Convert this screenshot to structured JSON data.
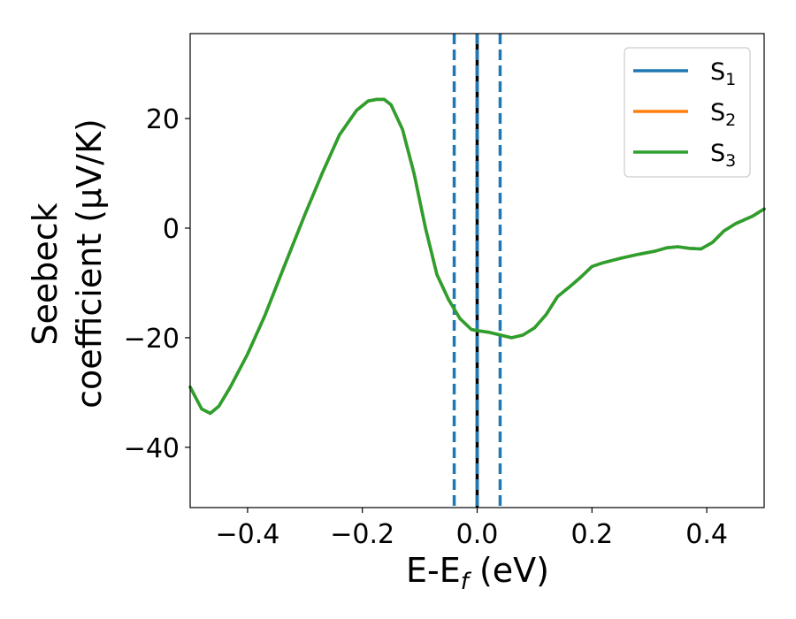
{
  "chart_data": {
    "type": "line",
    "xlabel": {
      "base": "E-E",
      "sub": "f",
      "tail": " (eV)"
    },
    "ylabel": [
      "Seebeck",
      "coefficient  (μV/K)"
    ],
    "xlim": [
      -0.5,
      0.5
    ],
    "ylim": [
      -51,
      35.5
    ],
    "xticks": [
      -0.4,
      -0.2,
      0.0,
      0.2,
      0.4
    ],
    "xtick_labels": [
      "−0.4",
      "−0.2",
      "0.0",
      "0.2",
      "0.4"
    ],
    "yticks": [
      -40,
      -20,
      0,
      20
    ],
    "ytick_labels": [
      "−40",
      "−20",
      "0",
      "20"
    ],
    "grid": false,
    "legend_position": "top-right",
    "series": [
      {
        "name": "S",
        "sub": "1",
        "color": "#1f77b4"
      },
      {
        "name": "S",
        "sub": "2",
        "color": "#ff7f0e"
      },
      {
        "name": "S",
        "sub": "3",
        "color": "#2ca02c"
      }
    ],
    "x": [
      -0.5,
      -0.48,
      -0.465,
      -0.45,
      -0.43,
      -0.4,
      -0.37,
      -0.34,
      -0.3,
      -0.27,
      -0.24,
      -0.21,
      -0.19,
      -0.175,
      -0.162,
      -0.15,
      -0.13,
      -0.11,
      -0.09,
      -0.07,
      -0.05,
      -0.03,
      -0.01,
      0.0,
      0.02,
      0.04,
      0.06,
      0.08,
      0.1,
      0.12,
      0.14,
      0.16,
      0.18,
      0.2,
      0.22,
      0.25,
      0.28,
      0.31,
      0.33,
      0.35,
      0.37,
      0.39,
      0.41,
      0.43,
      0.45,
      0.48,
      0.5
    ],
    "y": [
      -29,
      -33,
      -33.8,
      -32.5,
      -29,
      -23,
      -16,
      -8,
      2.5,
      10,
      17,
      21.5,
      23.2,
      23.5,
      23.5,
      22.5,
      18,
      10,
      0,
      -8.5,
      -13,
      -16.5,
      -18.5,
      -18.7,
      -19,
      -19.5,
      -20,
      -19.5,
      -18.2,
      -15.8,
      -12.5,
      -10.8,
      -9,
      -7,
      -6.3,
      -5.5,
      -4.8,
      -4.2,
      -3.6,
      -3.4,
      -3.7,
      -3.8,
      -2.6,
      -0.5,
      0.8,
      2.2,
      3.5
    ],
    "vertical_lines": [
      {
        "x": -0.04,
        "style": "dashed",
        "color": "#1f77b4"
      },
      {
        "x": 0.0,
        "style": "solid",
        "color": "#000000"
      },
      {
        "x": 0.0,
        "style": "dashed",
        "color": "#1f77b4"
      },
      {
        "x": 0.04,
        "style": "dashed",
        "color": "#1f77b4"
      }
    ]
  }
}
